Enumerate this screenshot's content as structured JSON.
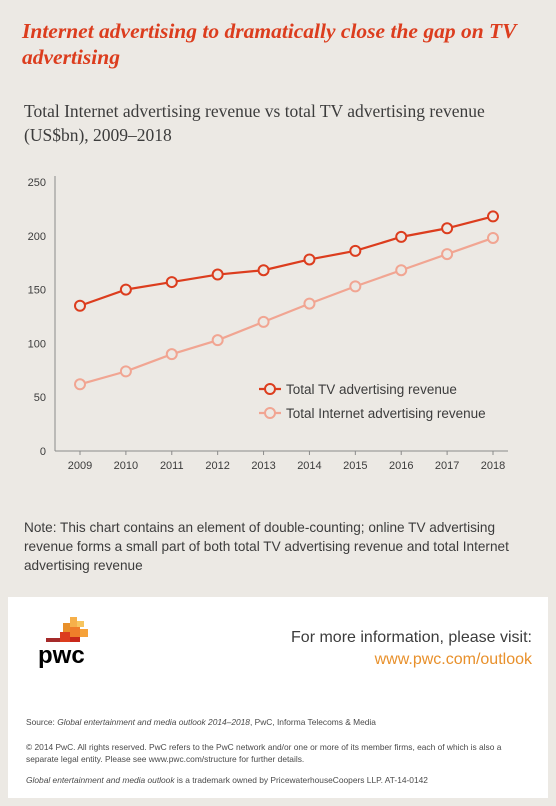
{
  "header": {
    "headline": "Internet advertising to dramatically close the gap on TV advertising",
    "subtitle": "Total Internet advertising revenue vs total TV advertising revenue (US$bn), 2009–2018"
  },
  "chart_data": {
    "type": "line",
    "title": "Total Internet advertising revenue vs total TV advertising revenue (US$bn), 2009–2018",
    "xlabel": "",
    "ylabel": "",
    "x": [
      "2009",
      "2010",
      "2011",
      "2012",
      "2013",
      "2014",
      "2015",
      "2016",
      "2017",
      "2018"
    ],
    "ylim": [
      0,
      250
    ],
    "yticks": [
      0,
      50,
      100,
      150,
      200,
      250
    ],
    "grid": false,
    "legend_position": "center-right",
    "series": [
      {
        "name": "Total TV advertising revenue",
        "color": "#dc3d1e",
        "values": [
          135,
          150,
          157,
          164,
          168,
          178,
          186,
          199,
          207,
          218
        ]
      },
      {
        "name": "Total Internet advertising revenue",
        "color": "#f1a592",
        "values": [
          62,
          74,
          90,
          103,
          120,
          137,
          153,
          168,
          183,
          198
        ]
      }
    ]
  },
  "note": "Note: This chart contains an element of double-counting; online TV advertising revenue forms a small part of both total TV advertising revenue and total Internet advertising revenue",
  "footer": {
    "logo_text": "pwc",
    "more_info": "For more information, please visit:",
    "url": "www.pwc.com/outlook",
    "source_label": "Source:",
    "source_title": "Global entertainment and media outlook 2014–2018",
    "source_rest": ", PwC, Informa Telecoms & Media",
    "copyright": "© 2014 PwC. All rights reserved. PwC refers to the PwC network and/or one or more of its member firms, each of which is also a separate legal entity. Please see www.pwc.com/structure for further details.",
    "trademark_title": "Global entertainment and media outlook",
    "trademark_rest": " is a trademark owned by PricewaterhouseCoopers LLP. AT-14-0142"
  },
  "colors": {
    "background": "#ece9e4",
    "accent": "#dc3d1e",
    "internet_series": "#f1a592",
    "url_orange": "#e8902b"
  }
}
